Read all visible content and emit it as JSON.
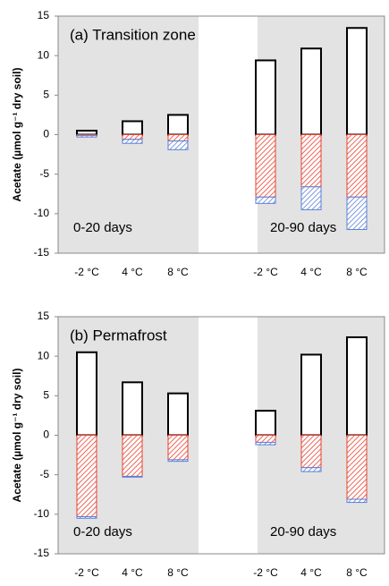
{
  "chart_data": [
    {
      "type": "bar",
      "title": "(a) Transition zone",
      "y_label": "Acetate (µmol g⁻¹ dry soil)",
      "categories": [
        "-2 °C",
        "4 °C",
        "8 °C",
        "-2 °C",
        "4 °C",
        "8 °C"
      ],
      "groups": [
        "0-20 days",
        "20-90 days"
      ],
      "series": [
        {
          "color": "#ffffff",
          "values": [
            0.5,
            1.7,
            2.5,
            9.4,
            10.9,
            13.5
          ]
        },
        {
          "color": "#e8402f",
          "values": [
            -0.1,
            -0.6,
            -0.8,
            -7.9,
            -6.6,
            -7.9
          ]
        },
        {
          "color": "#5b7fd6",
          "values": [
            -0.2,
            -0.5,
            -1.1,
            -0.8,
            -2.9,
            -4.1
          ]
        }
      ],
      "ylim": [
        -15,
        15
      ],
      "yticks": [
        -15,
        -10,
        -5,
        0,
        5,
        10,
        15
      ]
    },
    {
      "type": "bar",
      "title": "(b) Permafrost",
      "y_label": "Acetate (µmol g⁻¹ dry soil)",
      "categories": [
        "-2 °C",
        "4 °C",
        "8 °C",
        "-2 °C",
        "4 °C",
        "8 °C"
      ],
      "groups": [
        "0-20 days",
        "20-90 days"
      ],
      "series": [
        {
          "color": "#ffffff",
          "values": [
            10.5,
            6.7,
            5.3,
            3.1,
            10.2,
            12.4
          ]
        },
        {
          "color": "#e8402f",
          "values": [
            -10.3,
            -5.2,
            -3.1,
            -0.9,
            -4.1,
            -8.1
          ]
        },
        {
          "color": "#5b7fd6",
          "values": [
            -0.2,
            -0.1,
            -0.2,
            -0.3,
            -0.5,
            -0.4
          ]
        }
      ],
      "ylim": [
        -15,
        15
      ],
      "yticks": [
        -15,
        -10,
        -5,
        0,
        5,
        10,
        15
      ]
    }
  ]
}
